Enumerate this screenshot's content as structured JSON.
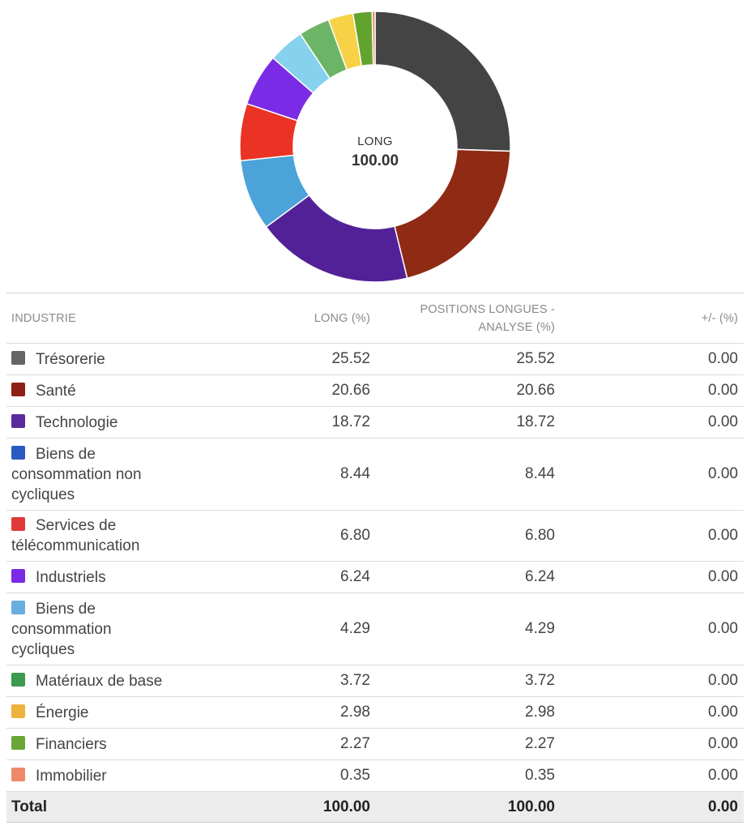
{
  "chart_data": {
    "type": "pie",
    "center_title": "LONG",
    "center_value": "100.00",
    "categories": [
      "Trésorerie",
      "Santé",
      "Technologie",
      "Biens de consommation non cycliques",
      "Services de télécommunication",
      "Industriels",
      "Biens de consommation cycliques",
      "Matériaux de base",
      "Énergie",
      "Financiers",
      "Immobilier"
    ],
    "values": [
      25.52,
      20.66,
      18.72,
      8.44,
      6.8,
      6.24,
      4.29,
      3.72,
      2.98,
      2.27,
      0.35
    ],
    "slice_colors": [
      "#444444",
      "#8f2a14",
      "#532197",
      "#4ba3d9",
      "#ea3324",
      "#7a2be6",
      "#86d2ee",
      "#6db566",
      "#f7d246",
      "#62a32e",
      "#e8865f"
    ]
  },
  "table": {
    "headers": {
      "industry": "INDUSTRIE",
      "long": "LONG (%)",
      "analysis_line1": "POSITIONS LONGUES -",
      "analysis_line2": "ANALYSE (%)",
      "diff": "+/- (%)"
    },
    "rows": [
      {
        "name": "Trésorerie",
        "color": "#666666",
        "long": "25.52",
        "analysis": "25.52",
        "diff": "0.00"
      },
      {
        "name": "Santé",
        "color": "#8f2016",
        "long": "20.66",
        "analysis": "20.66",
        "diff": "0.00"
      },
      {
        "name": "Technologie",
        "color": "#5b2a9c",
        "long": "18.72",
        "analysis": "18.72",
        "diff": "0.00"
      },
      {
        "name": "Biens de consommation non cycliques",
        "color": "#2a5bbf",
        "long": "8.44",
        "analysis": "8.44",
        "diff": "0.00"
      },
      {
        "name": "Services de télécommunication",
        "color": "#df3a3a",
        "long": "6.80",
        "analysis": "6.80",
        "diff": "0.00"
      },
      {
        "name": "Industriels",
        "color": "#7b2ae6",
        "long": "6.24",
        "analysis": "6.24",
        "diff": "0.00"
      },
      {
        "name": "Biens de consommation cycliques",
        "color": "#6aaee0",
        "long": "4.29",
        "analysis": "4.29",
        "diff": "0.00"
      },
      {
        "name": "Matériaux de base",
        "color": "#3b9a4e",
        "long": "3.72",
        "analysis": "3.72",
        "diff": "0.00"
      },
      {
        "name": "Énergie",
        "color": "#edb23e",
        "long": "2.98",
        "analysis": "2.98",
        "diff": "0.00"
      },
      {
        "name": "Financiers",
        "color": "#6aa637",
        "long": "2.27",
        "analysis": "2.27",
        "diff": "0.00"
      },
      {
        "name": "Immobilier",
        "color": "#ee8a69",
        "long": "0.35",
        "analysis": "0.35",
        "diff": "0.00"
      }
    ],
    "total": {
      "label": "Total",
      "long": "100.00",
      "analysis": "100.00",
      "diff": "0.00"
    }
  }
}
